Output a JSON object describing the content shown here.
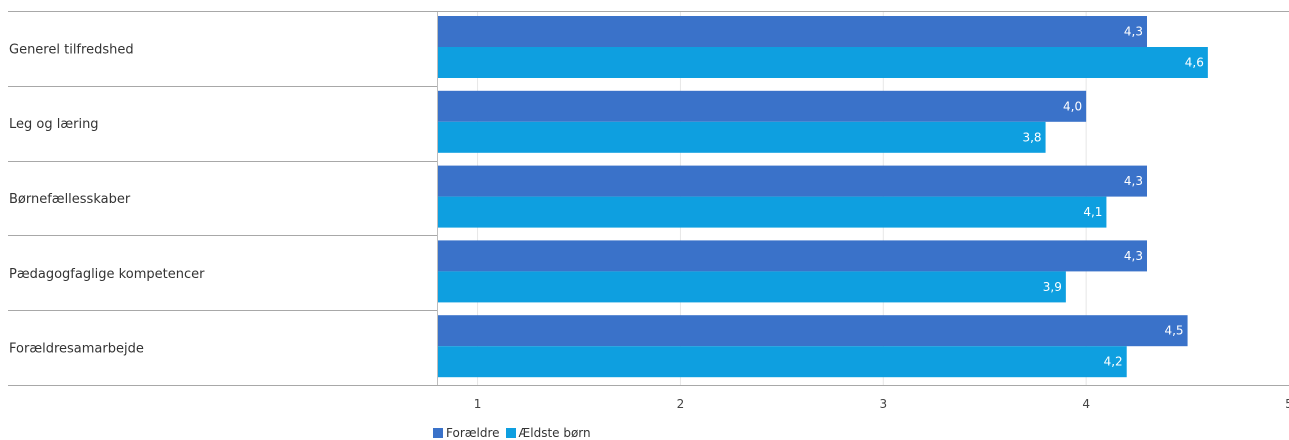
{
  "chart_data": {
    "type": "bar",
    "orientation": "horizontal",
    "categories": [
      "Generel tilfredshed",
      "Leg og læring",
      "Børnefællesskaber",
      "Pædagogfaglige kompetencer",
      "Forældresamarbejde"
    ],
    "series": [
      {
        "name": "Forældre",
        "color": "#3a72c9",
        "values": [
          4.3,
          4.0,
          4.3,
          4.3,
          4.5
        ],
        "labels": [
          "4,3",
          "4,0",
          "4,3",
          "4,3",
          "4,5"
        ]
      },
      {
        "name": "Ældste børn",
        "color": "#0e9fe0",
        "values": [
          4.6,
          3.8,
          4.1,
          3.9,
          4.2
        ],
        "labels": [
          "4,6",
          "3,8",
          "4,1",
          "3,9",
          "4,2"
        ]
      }
    ],
    "x_axis": {
      "min": 0.8,
      "max": 5,
      "ticks": [
        1,
        2,
        3,
        4,
        5
      ],
      "tick_labels": [
        "1",
        "2",
        "3",
        "4",
        "5"
      ]
    },
    "grid": true,
    "legend_position": "bottom-left"
  }
}
